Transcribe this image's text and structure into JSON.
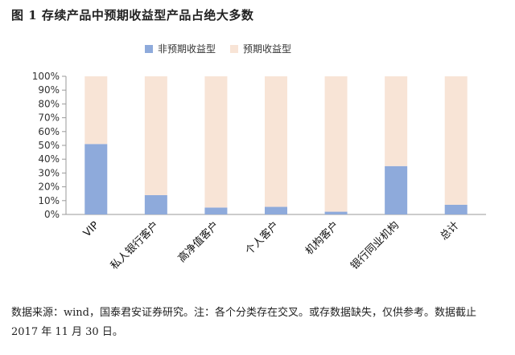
{
  "figure": {
    "title": "图 1 存续产品中预期收益型产品占绝大多数",
    "footnote": "数据来源：wind，国泰君安证券研究。注：各个分类存在交叉。或存数据缺失，仅供参考。数据截止 2017 年 11 月 30 日。"
  },
  "chart_data": {
    "type": "bar",
    "stacked": true,
    "categories": [
      "VIP",
      "私人银行客户",
      "高净值客户",
      "个人客户",
      "机构客户",
      "银行同业机构",
      "总计"
    ],
    "series": [
      {
        "name": "非预期收益型",
        "values": [
          51,
          14,
          5,
          5.5,
          2,
          35,
          7
        ],
        "color": "#8eaadb"
      },
      {
        "name": "预期收益型",
        "values": [
          49,
          86,
          95,
          94.5,
          98,
          65,
          93
        ],
        "color": "#f8e4d6"
      }
    ],
    "yticks": [
      "0%",
      "10%",
      "20%",
      "30%",
      "40%",
      "50%",
      "60%",
      "70%",
      "80%",
      "90%",
      "100%"
    ],
    "ylim": [
      0,
      100
    ],
    "grid": false,
    "legend_position": "top"
  }
}
